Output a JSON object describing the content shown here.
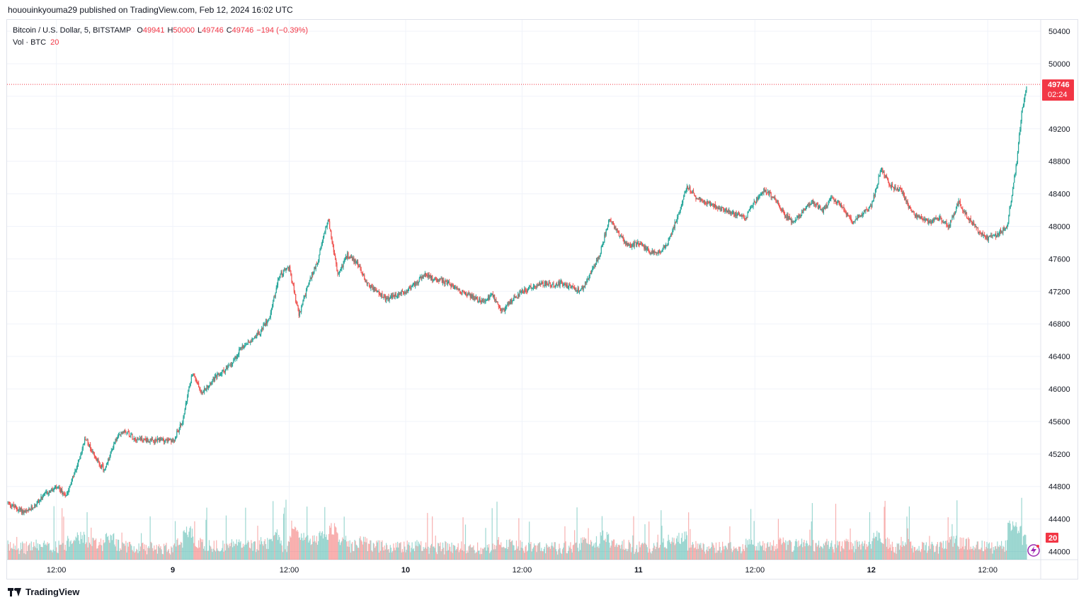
{
  "header": {
    "published": "hououinkyouma29 published on TradingView.com, Feb 12, 2024 16:02 UTC"
  },
  "legend": {
    "symbol": "Bitcoin / U.S. Dollar, 5, BITSTAMP",
    "o_label": "O",
    "o_value": "49941",
    "h_label": "H",
    "h_value": "50000",
    "l_label": "L",
    "l_value": "49746",
    "c_label": "C",
    "c_value": "49746",
    "change": "−194 (−0.39%)",
    "vol_label": "Vol · BTC",
    "vol_value": "20"
  },
  "price_badge": {
    "price": "49746",
    "countdown": "02:24"
  },
  "volume_badge": "20",
  "footer": {
    "brand": "TradingView"
  },
  "colors": {
    "up": "#26a69a",
    "down": "#ef5350",
    "badge": "#f23645",
    "grid": "#f0f3fa"
  },
  "chart_data": {
    "type": "candlestick",
    "title": "Bitcoin / U.S. Dollar, 5, BITSTAMP",
    "y_ticks": [
      44000,
      44400,
      44800,
      45200,
      45600,
      46000,
      46400,
      46800,
      47200,
      47600,
      48000,
      48400,
      48800,
      49200,
      49600,
      50000,
      50400
    ],
    "ylim": [
      43900,
      50540
    ],
    "x_ticks": [
      "12:00",
      "9",
      "12:00",
      "10",
      "12:00",
      "11",
      "12:00",
      "12",
      "12:00"
    ],
    "x_tick_times": [
      "2024-02-08 12:00",
      "2024-02-09 00:00",
      "2024-02-09 12:00",
      "2024-02-10 00:00",
      "2024-02-10 12:00",
      "2024-02-11 00:00",
      "2024-02-11 12:00",
      "2024-02-12 00:00",
      "2024-02-12 12:00"
    ],
    "time_range": [
      "2024-02-08 06:55",
      "2024-02-12 16:00"
    ],
    "last_price": 49746,
    "price_path": [
      [
        "2024-02-08 07:00",
        44600
      ],
      [
        "2024-02-08 08:00",
        44520
      ],
      [
        "2024-02-08 09:00",
        44480
      ],
      [
        "2024-02-08 10:00",
        44600
      ],
      [
        "2024-02-08 11:00",
        44720
      ],
      [
        "2024-02-08 12:00",
        44780
      ],
      [
        "2024-02-08 13:00",
        44700
      ],
      [
        "2024-02-08 14:00",
        45000
      ],
      [
        "2024-02-08 15:00",
        45400
      ],
      [
        "2024-02-08 16:00",
        45150
      ],
      [
        "2024-02-08 17:00",
        45000
      ],
      [
        "2024-02-08 18:00",
        45350
      ],
      [
        "2024-02-08 19:00",
        45500
      ],
      [
        "2024-02-08 20:00",
        45400
      ],
      [
        "2024-02-08 21:00",
        45380
      ],
      [
        "2024-02-08 22:00",
        45350
      ],
      [
        "2024-02-08 23:00",
        45380
      ],
      [
        "2024-02-09 00:00",
        45350
      ],
      [
        "2024-02-09 01:00",
        45600
      ],
      [
        "2024-02-09 02:00",
        46200
      ],
      [
        "2024-02-09 03:00",
        45950
      ],
      [
        "2024-02-09 04:00",
        46100
      ],
      [
        "2024-02-09 05:00",
        46200
      ],
      [
        "2024-02-09 06:00",
        46300
      ],
      [
        "2024-02-09 07:00",
        46500
      ],
      [
        "2024-02-09 08:00",
        46600
      ],
      [
        "2024-02-09 09:00",
        46700
      ],
      [
        "2024-02-09 10:00",
        46900
      ],
      [
        "2024-02-09 11:00",
        47400
      ],
      [
        "2024-02-09 12:00",
        47500
      ],
      [
        "2024-02-09 13:00",
        46900
      ],
      [
        "2024-02-09 14:00",
        47300
      ],
      [
        "2024-02-09 15:00",
        47600
      ],
      [
        "2024-02-09 16:00",
        48100
      ],
      [
        "2024-02-09 17:00",
        47400
      ],
      [
        "2024-02-09 18:00",
        47650
      ],
      [
        "2024-02-09 19:00",
        47550
      ],
      [
        "2024-02-09 20:00",
        47300
      ],
      [
        "2024-02-09 21:00",
        47200
      ],
      [
        "2024-02-09 22:00",
        47100
      ],
      [
        "2024-02-09 23:00",
        47150
      ],
      [
        "2024-02-10 00:00",
        47200
      ],
      [
        "2024-02-10 01:00",
        47300
      ],
      [
        "2024-02-10 02:00",
        47400
      ],
      [
        "2024-02-10 03:00",
        47350
      ],
      [
        "2024-02-10 04:00",
        47320
      ],
      [
        "2024-02-10 05:00",
        47250
      ],
      [
        "2024-02-10 06:00",
        47180
      ],
      [
        "2024-02-10 07:00",
        47120
      ],
      [
        "2024-02-10 08:00",
        47080
      ],
      [
        "2024-02-10 09:00",
        47150
      ],
      [
        "2024-02-10 10:00",
        46950
      ],
      [
        "2024-02-10 11:00",
        47100
      ],
      [
        "2024-02-10 12:00",
        47200
      ],
      [
        "2024-02-10 13:00",
        47250
      ],
      [
        "2024-02-10 14:00",
        47300
      ],
      [
        "2024-02-10 15:00",
        47280
      ],
      [
        "2024-02-10 16:00",
        47300
      ],
      [
        "2024-02-10 17:00",
        47250
      ],
      [
        "2024-02-10 18:00",
        47200
      ],
      [
        "2024-02-10 19:00",
        47400
      ],
      [
        "2024-02-10 20:00",
        47650
      ],
      [
        "2024-02-10 21:00",
        48100
      ],
      [
        "2024-02-10 22:00",
        47900
      ],
      [
        "2024-02-10 23:00",
        47750
      ],
      [
        "2024-02-11 00:00",
        47800
      ],
      [
        "2024-02-11 01:00",
        47700
      ],
      [
        "2024-02-11 02:00",
        47650
      ],
      [
        "2024-02-11 03:00",
        47800
      ],
      [
        "2024-02-11 04:00",
        48100
      ],
      [
        "2024-02-11 05:00",
        48500
      ],
      [
        "2024-02-11 06:00",
        48350
      ],
      [
        "2024-02-11 07:00",
        48300
      ],
      [
        "2024-02-11 08:00",
        48250
      ],
      [
        "2024-02-11 09:00",
        48200
      ],
      [
        "2024-02-11 10:00",
        48150
      ],
      [
        "2024-02-11 11:00",
        48100
      ],
      [
        "2024-02-11 12:00",
        48300
      ],
      [
        "2024-02-11 13:00",
        48450
      ],
      [
        "2024-02-11 14:00",
        48350
      ],
      [
        "2024-02-11 15:00",
        48150
      ],
      [
        "2024-02-11 16:00",
        48050
      ],
      [
        "2024-02-11 17:00",
        48200
      ],
      [
        "2024-02-11 18:00",
        48300
      ],
      [
        "2024-02-11 19:00",
        48200
      ],
      [
        "2024-02-11 20:00",
        48350
      ],
      [
        "2024-02-11 21:00",
        48250
      ],
      [
        "2024-02-11 22:00",
        48050
      ],
      [
        "2024-02-11 23:00",
        48150
      ],
      [
        "2024-02-12 00:00",
        48250
      ],
      [
        "2024-02-12 01:00",
        48700
      ],
      [
        "2024-02-12 02:00",
        48500
      ],
      [
        "2024-02-12 03:00",
        48450
      ],
      [
        "2024-02-12 04:00",
        48200
      ],
      [
        "2024-02-12 05:00",
        48100
      ],
      [
        "2024-02-12 06:00",
        48050
      ],
      [
        "2024-02-12 07:00",
        48100
      ],
      [
        "2024-02-12 08:00",
        48000
      ],
      [
        "2024-02-12 09:00",
        48300
      ],
      [
        "2024-02-12 10:00",
        48100
      ],
      [
        "2024-02-12 11:00",
        47950
      ],
      [
        "2024-02-12 12:00",
        47850
      ],
      [
        "2024-02-12 13:00",
        47900
      ],
      [
        "2024-02-12 14:00",
        48000
      ],
      [
        "2024-02-12 15:00",
        48800
      ],
      [
        "2024-02-12 15:30",
        49400
      ],
      [
        "2024-02-12 16:00",
        49746
      ]
    ],
    "volume_axis_label": "20"
  }
}
